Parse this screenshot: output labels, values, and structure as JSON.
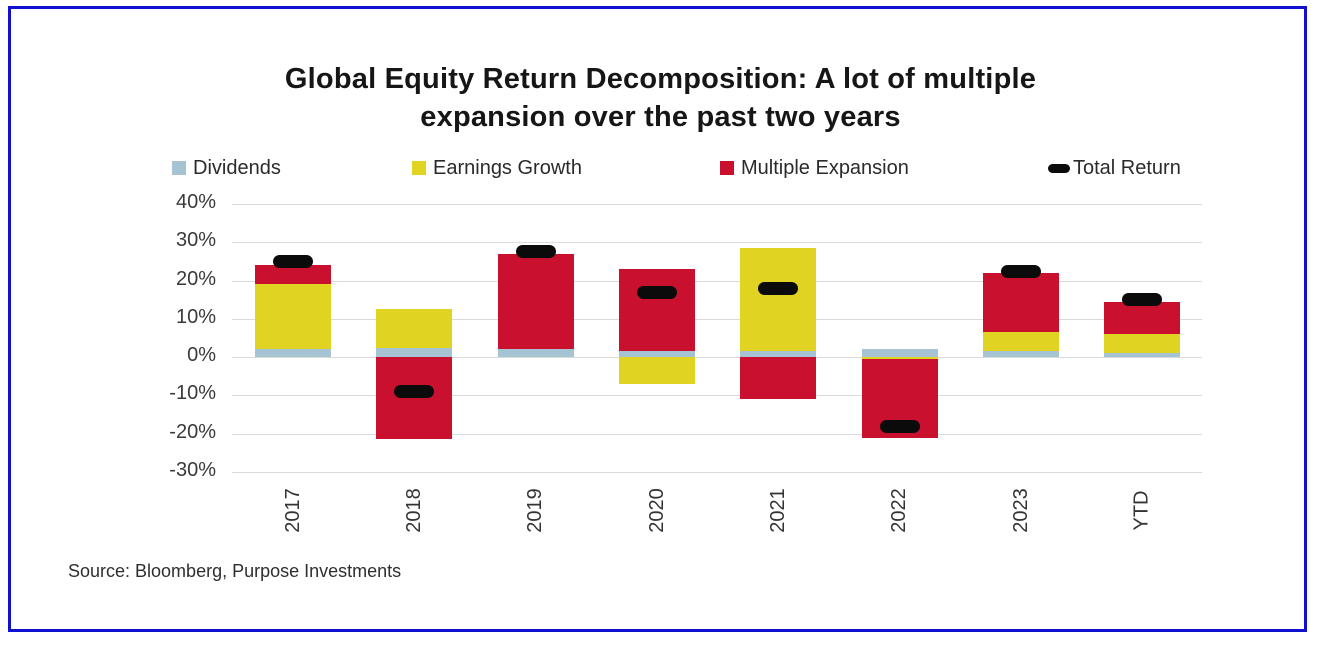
{
  "header": {
    "title_line1": "Global Equity Return Decomposition: A lot of multiple",
    "title_line2": "expansion over the past two years"
  },
  "legend": [
    {
      "label": "Dividends",
      "color": "#A5C3D3",
      "marker": "square"
    },
    {
      "label": "Earnings Growth",
      "color": "#E0D321",
      "marker": "square"
    },
    {
      "label": "Multiple Expansion",
      "color": "#C9112F",
      "marker": "square"
    },
    {
      "label": "Total Return",
      "color": "#0B0B0B",
      "marker": "dash"
    }
  ],
  "chart_data": {
    "type": "bar",
    "stacked": true,
    "title": "Global Equity Return Decomposition: A lot of multiple expansion over the past two years",
    "categories": [
      "2017",
      "2018",
      "2019",
      "2020",
      "2021",
      "2022",
      "2023",
      "YTD"
    ],
    "series": [
      {
        "name": "Dividends",
        "color": "#A5C3D3",
        "values": [
          2,
          2.5,
          2,
          1.5,
          1.5,
          2,
          1.5,
          1
        ]
      },
      {
        "name": "Earnings Growth",
        "color": "#E0D321",
        "values": [
          17,
          10,
          0,
          -7,
          27,
          -0.5,
          5,
          5
        ]
      },
      {
        "name": "Multiple Expansion",
        "color": "#C9112F",
        "values": [
          5,
          -21.5,
          25,
          21.5,
          -11,
          -20.5,
          15.5,
          8.5
        ]
      }
    ],
    "markers": {
      "name": "Total Return",
      "color": "#0B0B0B",
      "values": [
        25,
        -9,
        27.5,
        17,
        18,
        -18,
        22.5,
        15
      ]
    },
    "ylabel": "",
    "xlabel": "",
    "ylim": [
      -30,
      40
    ],
    "ytick_step": 10,
    "ytick_labels": [
      "40%",
      "30%",
      "20%",
      "10%",
      "0%",
      "-10%",
      "-20%",
      "-30%"
    ],
    "grid": true,
    "legend_position": "top"
  },
  "footer": {
    "source": "Source: Bloomberg, Purpose Investments"
  },
  "colors": {
    "frame_border": "#1010D0",
    "gridline": "#DADADA",
    "title_text": "#161616",
    "axis_text": "#3a3a3a",
    "marker": "#0B0B0B"
  }
}
